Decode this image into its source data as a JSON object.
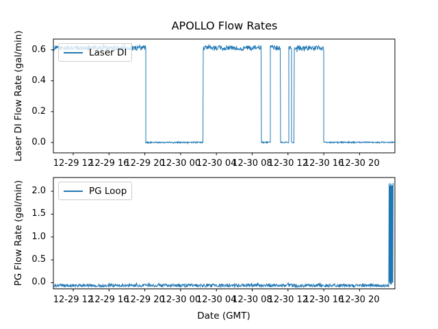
{
  "figure": {
    "line_color": "#1f77b4",
    "background": "#ffffff",
    "axis_color": "#000000",
    "legend_border_color": "#cccccc"
  },
  "chart_data": [
    {
      "type": "line",
      "title": "APOLLO Flow Rates",
      "ylabel": "Laser DI Flow Rate (gal/min)",
      "legend_position": "upper left",
      "grid": false,
      "x_unit": "hours after 12-29 12:00 GMT",
      "xlim": [
        -2.218,
        35.946
      ],
      "ylim": [
        -0.067,
        0.67
      ],
      "x_ticks": [
        {
          "h": 0,
          "label": "12-29 12"
        },
        {
          "h": 4,
          "label": "12-29 16"
        },
        {
          "h": 8,
          "label": "12-29 20"
        },
        {
          "h": 12,
          "label": "12-30 00"
        },
        {
          "h": 16,
          "label": "12-30 04"
        },
        {
          "h": 20,
          "label": "12-30 08"
        },
        {
          "h": 24,
          "label": "12-30 12"
        },
        {
          "h": 28,
          "label": "12-30 16"
        },
        {
          "h": 32,
          "label": "12-30 20"
        }
      ],
      "y_ticks": [
        {
          "v": 0.0,
          "label": "0.0"
        },
        {
          "v": 0.2,
          "label": "0.2"
        },
        {
          "v": 0.4,
          "label": "0.4"
        },
        {
          "v": 0.6,
          "label": "0.6"
        }
      ],
      "series": [
        {
          "name": "Laser DI",
          "color": "#1f77b4",
          "segments": [
            {
              "h0": -2.218,
              "h1": 8.11,
              "level": 0.612,
              "noise": 0.016
            },
            {
              "h0": 8.11,
              "h1": 14.53,
              "level": 0.001,
              "noise": 0.004
            },
            {
              "h0": 14.53,
              "h1": 21.03,
              "level": 0.612,
              "noise": 0.016
            },
            {
              "h0": 21.03,
              "h1": 22.03,
              "level": 0.001,
              "noise": 0.004
            },
            {
              "h0": 22.03,
              "h1": 23.17,
              "level": 0.612,
              "noise": 0.016
            },
            {
              "h0": 23.17,
              "h1": 24.09,
              "level": 0.001,
              "noise": 0.004
            },
            {
              "h0": 24.09,
              "h1": 24.4,
              "level": 0.612,
              "noise": 0.014
            },
            {
              "h0": 24.4,
              "h1": 24.7,
              "level": 0.001,
              "noise": 0.004
            },
            {
              "h0": 24.7,
              "h1": 27.99,
              "level": 0.612,
              "noise": 0.016
            },
            {
              "h0": 27.99,
              "h1": 35.946,
              "level": 0.001,
              "noise": 0.004
            }
          ]
        }
      ]
    },
    {
      "type": "line",
      "ylabel": "PG Flow Rate (gal/min)",
      "xlabel": "Date (GMT)",
      "legend_position": "upper left",
      "grid": false,
      "x_unit": "hours after 12-29 12:00 GMT",
      "xlim": [
        -2.218,
        35.946
      ],
      "ylim": [
        -0.135,
        2.3
      ],
      "x_ticks": [
        {
          "h": 0,
          "label": "12-29 12"
        },
        {
          "h": 4,
          "label": "12-29 16"
        },
        {
          "h": 8,
          "label": "12-29 20"
        },
        {
          "h": 12,
          "label": "12-30 00"
        },
        {
          "h": 16,
          "label": "12-30 04"
        },
        {
          "h": 20,
          "label": "12-30 08"
        },
        {
          "h": 24,
          "label": "12-30 12"
        },
        {
          "h": 28,
          "label": "12-30 16"
        },
        {
          "h": 32,
          "label": "12-30 20"
        }
      ],
      "y_ticks": [
        {
          "v": 0.0,
          "label": "0.0"
        },
        {
          "v": 0.5,
          "label": "0.5"
        },
        {
          "v": 1.0,
          "label": "1.0"
        },
        {
          "v": 1.5,
          "label": "1.5"
        },
        {
          "v": 2.0,
          "label": "2.0"
        }
      ],
      "series": [
        {
          "name": "PG Loop",
          "color": "#1f77b4",
          "segments": [
            {
              "h0": -2.218,
              "h1": 35.26,
              "level": -0.06,
              "noise": 0.035
            },
            {
              "h0": 35.26,
              "h1": 35.79,
              "level": 1.06,
              "noise": 1.13,
              "alt": true
            }
          ]
        }
      ]
    }
  ]
}
